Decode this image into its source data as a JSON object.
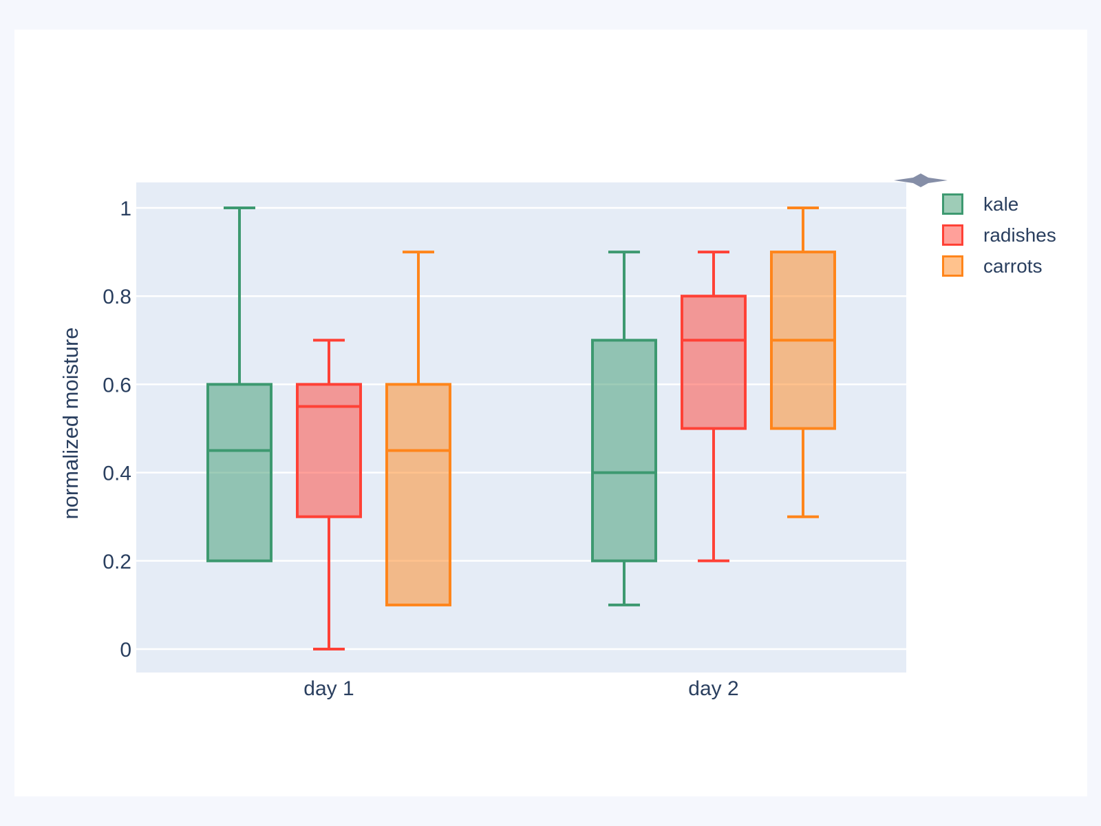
{
  "page": {
    "background_color": "#F5F7FD",
    "card_background_color": "#FFFFFF"
  },
  "chart_data": {
    "type": "box",
    "title": "",
    "xlabel": "",
    "ylabel": "normalized moisture",
    "categories": [
      "day 1",
      "day 2"
    ],
    "yticks": [
      0,
      0.2,
      0.4,
      0.6,
      0.8,
      1
    ],
    "ytick_labels": [
      "0",
      "0.2",
      "0.4",
      "0.6",
      "0.8",
      "1"
    ],
    "ylim": [
      -0.05,
      1.06
    ],
    "grid": true,
    "gridcolor": "#FFFFFF",
    "plot_bgcolor": "#E5ECF6",
    "paper_bgcolor": "#FFFFFF",
    "font_color": "#2A3F5F",
    "legend_position": "right-top",
    "box_fill_opacity": 0.5,
    "series": [
      {
        "name": "kale",
        "color": "#3D9970",
        "boxes": [
          {
            "category": "day 1",
            "min": 0.2,
            "q1": 0.2,
            "median": 0.45,
            "q3": 0.6,
            "max": 1.0
          },
          {
            "category": "day 2",
            "min": 0.1,
            "q1": 0.2,
            "median": 0.4,
            "q3": 0.7,
            "max": 0.9
          }
        ]
      },
      {
        "name": "radishes",
        "color": "#FF4136",
        "boxes": [
          {
            "category": "day 1",
            "min": 0.0,
            "q1": 0.3,
            "median": 0.55,
            "q3": 0.6,
            "max": 0.7
          },
          {
            "category": "day 2",
            "min": 0.2,
            "q1": 0.5,
            "median": 0.7,
            "q3": 0.8,
            "max": 0.9
          }
        ]
      },
      {
        "name": "carrots",
        "color": "#FF851B",
        "boxes": [
          {
            "category": "day 1",
            "min": 0.1,
            "q1": 0.1,
            "median": 0.45,
            "q3": 0.6,
            "max": 0.9
          },
          {
            "category": "day 2",
            "min": 0.3,
            "q1": 0.5,
            "median": 0.7,
            "q3": 0.9,
            "max": 1.0
          }
        ]
      }
    ]
  },
  "decor": {
    "diamond_icon": "four-pointed-star",
    "diamond_icon_color": "#78829D"
  }
}
